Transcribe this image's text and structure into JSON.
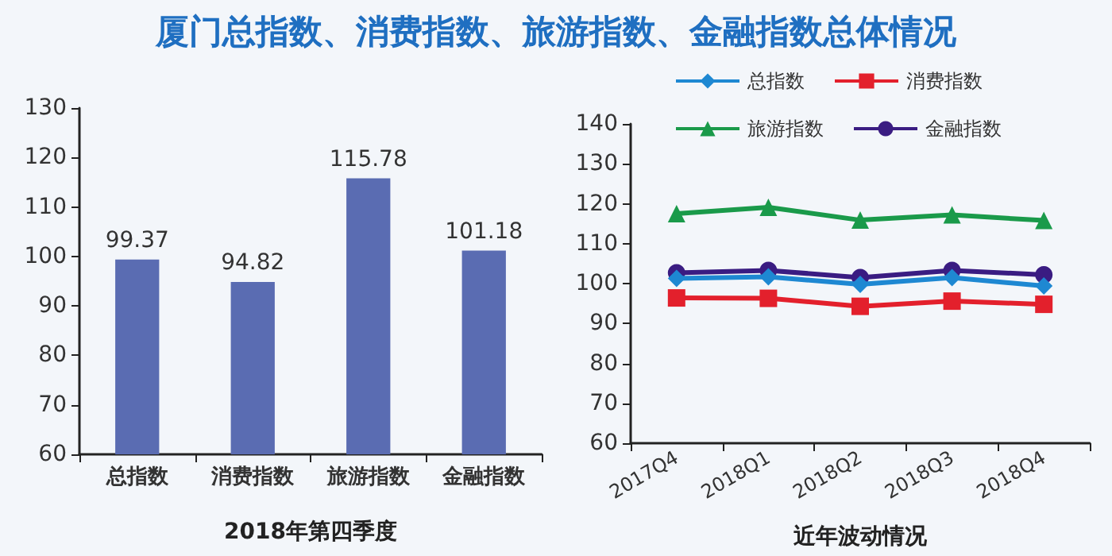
{
  "chart_data": [
    {
      "type": "bar",
      "title": "厦门总指数、消费指数、旅游指数、金融指数总体情况",
      "xlabel": "2018年第四季度",
      "categories": [
        "总指数",
        "消费指数",
        "旅游指数",
        "金融指数"
      ],
      "values": [
        99.37,
        94.82,
        115.78,
        101.18
      ],
      "color": "#5a6cb2",
      "ylim": [
        60,
        130
      ],
      "yticks": [
        60,
        70,
        80,
        90,
        100,
        110,
        120,
        130
      ],
      "data_labels": true,
      "grid": false,
      "legend": false
    },
    {
      "type": "line",
      "xlabel": "近年波动情况",
      "categories": [
        "2017Q4",
        "2018Q1",
        "2018Q2",
        "2018Q3",
        "2018Q4"
      ],
      "ylim": [
        60,
        140
      ],
      "yticks": [
        60,
        70,
        80,
        90,
        100,
        110,
        120,
        130,
        140
      ],
      "grid": false,
      "legend": "top",
      "series": [
        {
          "name": "总指数",
          "color": "#1e88d2",
          "marker": "diamond",
          "values": [
            101.3,
            101.7,
            99.8,
            101.5,
            99.4
          ]
        },
        {
          "name": "消费指数",
          "color": "#e3202c",
          "marker": "square",
          "values": [
            96.4,
            96.3,
            94.3,
            95.6,
            94.8
          ]
        },
        {
          "name": "旅游指数",
          "color": "#1a9a4a",
          "marker": "triangle",
          "values": [
            117.5,
            119.1,
            115.9,
            117.2,
            115.8
          ]
        },
        {
          "name": "金融指数",
          "color": "#3a1c82",
          "marker": "circle",
          "values": [
            102.7,
            103.3,
            101.5,
            103.3,
            102.2
          ]
        }
      ]
    }
  ]
}
